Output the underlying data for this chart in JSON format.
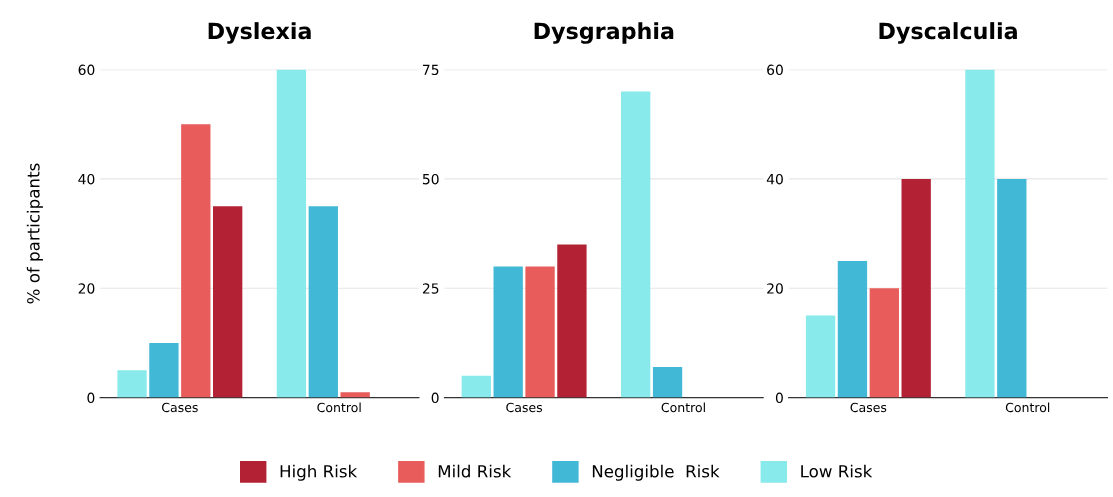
{
  "chart_data": [
    {
      "type": "bar",
      "title": "Dyslexia",
      "ylabel": "% of participants",
      "categories": [
        "Cases",
        "Control"
      ],
      "ylim": [
        0,
        60
      ],
      "yticks": [
        0,
        20,
        40,
        60
      ],
      "grid": "y",
      "legend": "bottom",
      "series": [
        {
          "name": "Low Risk",
          "color": "#88eaea",
          "values": [
            5,
            60
          ]
        },
        {
          "name": "Negligible  Risk",
          "color": "#41b8d5",
          "values": [
            10,
            35
          ]
        },
        {
          "name": "Mild Risk",
          "color": "#e85c5c",
          "values": [
            50,
            1
          ]
        },
        {
          "name": "High Risk",
          "color": "#b22234",
          "values": [
            35,
            null
          ]
        }
      ]
    },
    {
      "type": "bar",
      "title": "Dysgraphia",
      "categories": [
        "Cases",
        "Control"
      ],
      "ylim": [
        0,
        75
      ],
      "yticks": [
        0,
        25,
        50,
        75
      ],
      "grid": "y",
      "series": [
        {
          "color": "#88eaea",
          "values": [
            5,
            70
          ]
        },
        {
          "color": "#41b8d5",
          "values": [
            30,
            7
          ]
        },
        {
          "color": "#e85c5c",
          "values": [
            30,
            null
          ]
        },
        {
          "color": "#b22234",
          "values": [
            35,
            null
          ]
        }
      ]
    },
    {
      "type": "bar",
      "title": "Dyscalculia",
      "categories": [
        "Cases",
        "Control"
      ],
      "ylim": [
        0,
        60
      ],
      "yticks": [
        0,
        20,
        40,
        60
      ],
      "grid": "y",
      "series": [
        {
          "color": "#88eaea",
          "values": [
            15,
            60
          ]
        },
        {
          "color": "#41b8d5",
          "values": [
            25,
            40
          ]
        },
        {
          "color": "#e85c5c",
          "values": [
            20,
            null
          ]
        },
        {
          "color": "#b22234",
          "values": [
            40,
            null
          ]
        }
      ]
    }
  ]
}
